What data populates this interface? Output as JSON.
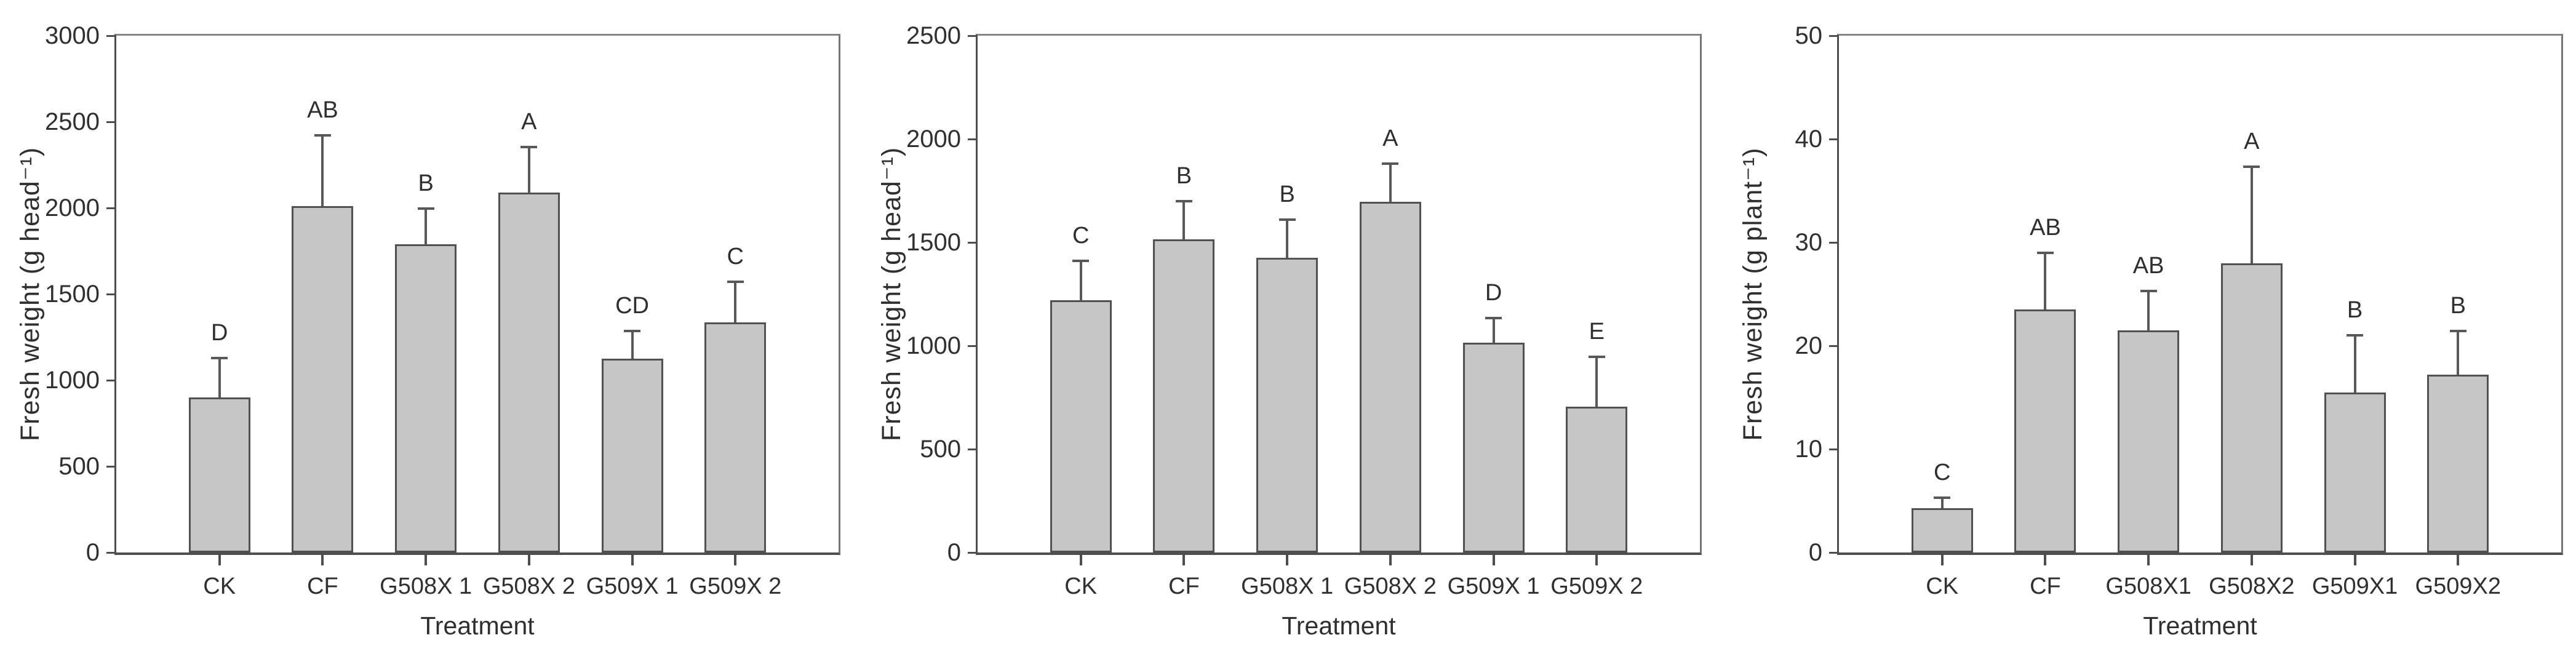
{
  "figure": {
    "background": "#ffffff",
    "style": {
      "bar_fill": "#c6c6c6",
      "bar_border": "#515154",
      "error_color": "#58585a",
      "axis_color": "#4e4e4e",
      "frame_color": "#858585",
      "text_color": "#2f2f2f"
    }
  },
  "chart_data": [
    {
      "type": "bar",
      "title": "",
      "ylabel": "Fresh weight (g head⁻¹)",
      "xlabel": "Treatment",
      "ylim": [
        0,
        3000
      ],
      "ytick_step": 500,
      "yticks": [
        "0",
        "500",
        "1000",
        "1500",
        "2000",
        "2500",
        "3000"
      ],
      "grid": false,
      "legend": "none",
      "categories": [
        "CK",
        "CF",
        "G508X 1",
        "G508X 2",
        "G509X 1",
        "G509X 2"
      ],
      "values": [
        900,
        2010,
        1790,
        2090,
        1125,
        1335
      ],
      "errors_upper": [
        230,
        410,
        205,
        265,
        160,
        235
      ],
      "significance_letters": [
        "D",
        "AB",
        "B",
        "A",
        "CD",
        "C"
      ]
    },
    {
      "type": "bar",
      "title": "",
      "ylabel": "Fresh weight (g head⁻¹)",
      "xlabel": "Treatment",
      "ylim": [
        0,
        2500
      ],
      "ytick_step": 500,
      "yticks": [
        "0",
        "500",
        "1000",
        "1500",
        "2000",
        "2500"
      ],
      "grid": false,
      "legend": "none",
      "categories": [
        "CK",
        "CF",
        "G508X 1",
        "G508X 2",
        "G509X 1",
        "G509X 2"
      ],
      "values": [
        1220,
        1515,
        1425,
        1695,
        1015,
        705
      ],
      "errors_upper": [
        190,
        185,
        185,
        185,
        120,
        240
      ],
      "significance_letters": [
        "C",
        "B",
        "B",
        "A",
        "D",
        "E"
      ]
    },
    {
      "type": "bar",
      "title": "",
      "ylabel": "Fresh weight (g plant⁻¹)",
      "xlabel": "Treatment",
      "ylim": [
        0,
        50
      ],
      "ytick_step": 10,
      "yticks": [
        "0",
        "10",
        "20",
        "30",
        "40",
        "50"
      ],
      "grid": false,
      "legend": "none",
      "categories": [
        "CK",
        "CF",
        "G508X1",
        "G508X2",
        "G509X1",
        "G509X2"
      ],
      "values": [
        4.3,
        23.5,
        21.5,
        28.0,
        15.5,
        17.2
      ],
      "errors_upper": [
        1.0,
        5.5,
        3.8,
        9.3,
        5.5,
        4.2
      ],
      "significance_letters": [
        "C",
        "AB",
        "AB",
        "A",
        "B",
        "B"
      ]
    }
  ]
}
